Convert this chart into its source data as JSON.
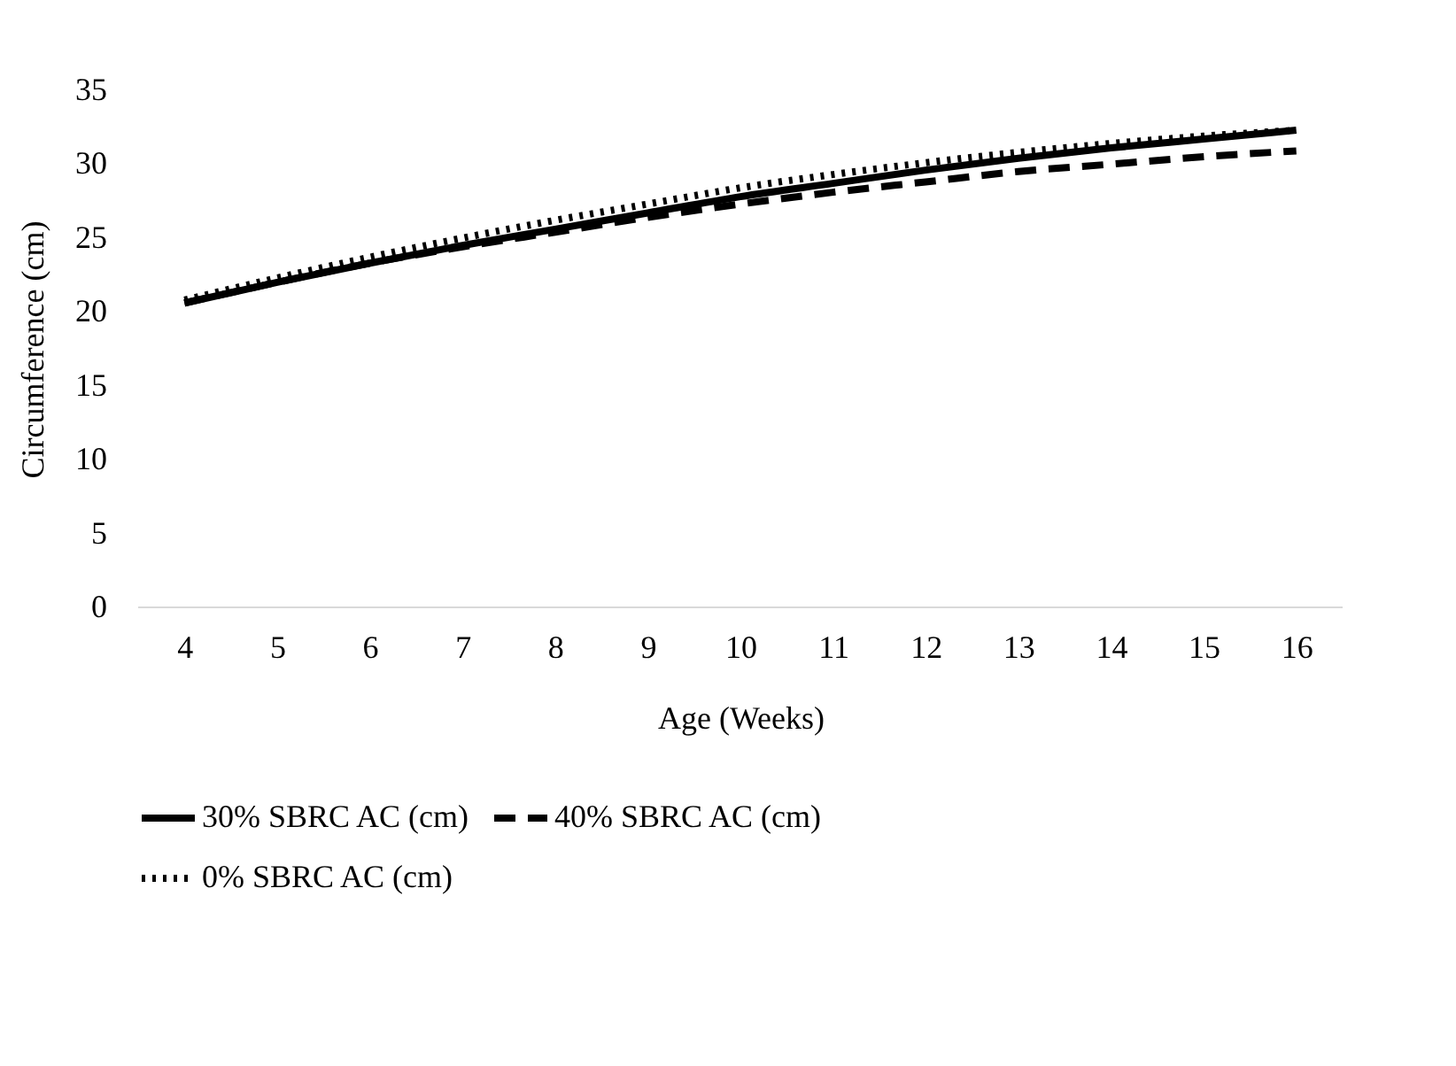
{
  "chart_data": {
    "type": "line",
    "xlabel": "Age (Weeks)",
    "ylabel": "Circumference (cm)",
    "categories": [
      "4",
      "5",
      "6",
      "7",
      "8",
      "9",
      "10",
      "11",
      "12",
      "13",
      "14",
      "15",
      "16"
    ],
    "ylim": [
      0,
      35
    ],
    "yticks": [
      0,
      5,
      10,
      15,
      20,
      25,
      30,
      35
    ],
    "grid": false,
    "legend": "bottom",
    "series": [
      {
        "name": "30% SBRC  AC (cm)",
        "color": "#000000",
        "line_style": "solid",
        "values": [
          20.6,
          22.0,
          23.3,
          24.5,
          25.6,
          26.7,
          27.8,
          28.7,
          29.6,
          30.4,
          31.1,
          31.7,
          32.3
        ]
      },
      {
        "name": "40% SBRC AC (cm)",
        "color": "#000000",
        "line_style": "dashed",
        "values": [
          20.6,
          22.0,
          23.3,
          24.4,
          25.4,
          26.4,
          27.3,
          28.1,
          28.8,
          29.5,
          30.0,
          30.5,
          30.9
        ]
      },
      {
        "name": "0% SBRC AC (cm)",
        "color": "#000000",
        "line_style": "dotted",
        "values": [
          20.8,
          22.3,
          23.7,
          25.0,
          26.2,
          27.3,
          28.4,
          29.3,
          30.1,
          30.8,
          31.4,
          31.9,
          32.3
        ]
      }
    ]
  }
}
